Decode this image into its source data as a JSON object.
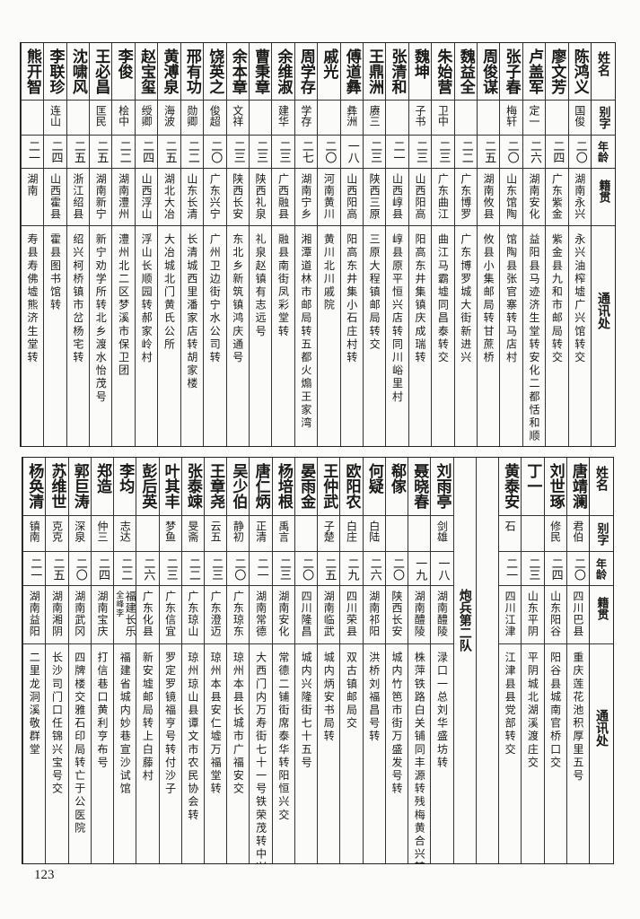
{
  "headers": {
    "name": "姓名",
    "alias": "别字",
    "age": "年龄",
    "origin": "籍贯",
    "address": "通讯处"
  },
  "top_table": {
    "rows": [
      {
        "name": "陈鸿义",
        "alias": "国俊",
        "age": "二〇",
        "origin": "湖南永兴",
        "address": "永兴油榨墟广兴馆转交"
      },
      {
        "name": "廖文芳",
        "alias": "",
        "age": "二四",
        "origin": "广东紫金",
        "address": "紫金县九和市邮局转交"
      },
      {
        "name": "卢盖军",
        "alias": "定一",
        "age": "二六",
        "origin": "湖南安化",
        "address": "益阳县马迹济生堂转安化二都恬和顺"
      },
      {
        "name": "张子春",
        "alias": "梅轩",
        "age": "二〇",
        "origin": "山东馆陶",
        "address": "馆陶县张官寨转马店村"
      },
      {
        "name": "周俊谋",
        "alias": "",
        "age": "二五",
        "origin": "湖南攸县",
        "address": "攸县小集邮局转甘蔗桥"
      },
      {
        "name": "魏益全",
        "alias": "",
        "age": "二二",
        "origin": "广东博罗",
        "address": "广东博罗城大街新进兴"
      },
      {
        "name": "朱始营",
        "alias": "卫中",
        "age": "二三",
        "origin": "广东曲江",
        "address": "曲江马霸墟同昌泰转交"
      },
      {
        "name": "魏坤",
        "alias": "子书",
        "age": "二三",
        "origin": "山西阳高",
        "address": "阳高东井集镇庆成瑞转"
      },
      {
        "name": "张清和",
        "alias": "",
        "age": "二一",
        "origin": "山西崞县",
        "address": "崞县原平恒兴店转同川峪里村"
      },
      {
        "name": "王鼎洲",
        "alias": "赓三",
        "age": "二三",
        "origin": "陕西三原",
        "address": "三原大程镇邮局转交"
      },
      {
        "name": "傅道彝",
        "alias": "彝洲",
        "age": "一八",
        "origin": "山西阳高",
        "address": "阳高东井集小石庄村转"
      },
      {
        "name": "戚光",
        "alias": "",
        "age": "二〇",
        "origin": "河南黄川",
        "address": "黄川北川戚院"
      },
      {
        "name": "周学存",
        "alias": "学存",
        "age": "二七",
        "origin": "湖南宁乡",
        "address": "湘潭道林市邮局转五都火煽王家湾"
      },
      {
        "name": "余维淑",
        "alias": "建华",
        "age": "二三",
        "origin": "广西融县",
        "address": "融县南街凤彩堂转"
      },
      {
        "name": "曹秉章",
        "alias": "",
        "age": "二三",
        "origin": "陕西礼泉",
        "address": "礼泉赵镇有志远号"
      },
      {
        "name": "余本章",
        "alias": "文祥",
        "age": "二三",
        "origin": "陕西长安",
        "address": "东北乡新筑镇鸿庆通号"
      },
      {
        "name": "饶英之",
        "alias": "俊超",
        "age": "二〇",
        "origin": "广东兴宁",
        "address": "广州卫边街宁水公司转"
      },
      {
        "name": "邢有功",
        "alias": "勋卿",
        "age": "二二",
        "origin": "山东长清",
        "address": "长清城西里潘家店转胡家楼"
      },
      {
        "name": "黄溥泉",
        "alias": "海波",
        "age": "二五",
        "origin": "湖北大冶",
        "address": "大冶城北门黄氏公所"
      },
      {
        "name": "赵宝玺",
        "alias": "绶卿",
        "age": "二四",
        "origin": "山西浮山",
        "address": "浮山长顺园转郝家岭村"
      },
      {
        "name": "李俊",
        "alias": "桧中",
        "age": "二二",
        "origin": "湖南澧州",
        "address": "澧州北二区梦溪市保卫团"
      },
      {
        "name": "王必昌",
        "alias": "匡民",
        "age": "二五",
        "origin": "湖南新宁",
        "address": "新宁劝学所转北乡渡水怡茂号"
      },
      {
        "name": "沈啸风",
        "alias": "",
        "age": "二五",
        "origin": "浙江绍县",
        "address": "绍兴柯桥镇市岔杨宅转"
      },
      {
        "name": "李联珍",
        "alias": "连山",
        "age": "二四",
        "origin": "山西霍县",
        "address": "霍县图书馆转"
      },
      {
        "name": "熊开智",
        "alias": "",
        "age": "二一",
        "origin": "湖南",
        "address": "寿县寿佛墟熊济生堂转"
      }
    ]
  },
  "bottom_table": {
    "rows_right": [
      {
        "name": "唐靖澜",
        "alias": "君伯",
        "age": "二〇",
        "origin": "四川巴县",
        "address": "重庆莲花池积厚里五号"
      },
      {
        "name": "刘世琢",
        "alias": "修民",
        "age": "二四",
        "origin": "山东阳谷",
        "address": "阳谷县城南官桥口交"
      },
      {
        "name": "丁一",
        "alias": "",
        "age": "二三",
        "origin": "山东平阴",
        "address": "平阴城北湖溪渡庄交"
      },
      {
        "name": "黄泰安",
        "alias": "石",
        "age": "二一",
        "origin": "四川江津",
        "address": "江津县县党部转交"
      }
    ],
    "section_title": "炮兵第二队",
    "rows_left": [
      {
        "name": "刘雨亭",
        "alias": "剑雄",
        "age": "一八",
        "origin": "湖南醴陵",
        "address": "渌口一总刘华盛坊转"
      },
      {
        "name": "聂晓春",
        "alias": "",
        "age": "一九",
        "origin": "湖南醴陵",
        "address": "株萍铁路白关铺同丰源转残梅黄合兴转"
      },
      {
        "name": "郗傢",
        "alias": "",
        "age": "二〇",
        "origin": "陕西长安",
        "address": "城内竹笆市街万盛发号转"
      },
      {
        "name": "何疑",
        "alias": "白陆",
        "age": "二六",
        "origin": "湖南祁阳",
        "address": "洪桥刘福昌号转"
      },
      {
        "name": "欧阳农",
        "alias": "白庄",
        "age": "二九",
        "origin": "四川荣县",
        "address": "双古镇邮局交"
      },
      {
        "name": "王仲武",
        "alias": "子楚",
        "age": "二五",
        "origin": "湖南临武",
        "address": "城内炳安书局转"
      },
      {
        "name": "晏雨金",
        "alias": "",
        "age": "二〇",
        "origin": "四川隆昌",
        "address": "城内兴隆街七十五号"
      },
      {
        "name": "杨培根",
        "alias": "禹言",
        "age": "二三",
        "origin": "湖南安化",
        "address": "常德二铺街席泰华转阳恒兴交"
      },
      {
        "name": "唐仁炳",
        "alias": "正清",
        "age": "二一",
        "origin": "湖南常德",
        "address": "大西门内万寿街七十一号铁荣茂转中兴桥交"
      },
      {
        "name": "吴少伯",
        "alias": "静初",
        "age": "二〇",
        "origin": "广东琼东",
        "address": "琼州本县长城市广福安交"
      },
      {
        "name": "王章尧",
        "alias": "云五",
        "age": "二三",
        "origin": "广东澄迈",
        "address": "琼州本县安仁墟万福堂转"
      },
      {
        "name": "张泰竦",
        "alias": "旻斋",
        "age": "二二",
        "origin": "广东琼山",
        "address": "琼州琼山县谭文市农民协会转"
      },
      {
        "name": "叶其丰",
        "alias": "梦鱼",
        "age": "二三",
        "origin": "广东信宜",
        "address": "罗定罗镜福亨号转付沙子"
      },
      {
        "name": "彭后英",
        "alias": "",
        "age": "二六",
        "origin": "广东化县",
        "address": "新安墟邮局转上白藤村"
      },
      {
        "name": "李均",
        "alias": "志达",
        "age": "二二",
        "origin": "福建长乐",
        "origin_note": "全峰李",
        "address": "福建省城内妙巷宣沙试馆"
      },
      {
        "name": "郑造",
        "alias": "仲三",
        "age": "二四",
        "origin": "湖南宝庆",
        "address": "打信巷口黄利亨布号"
      },
      {
        "name": "郭巨涛",
        "alias": "深泉",
        "age": "二〇",
        "origin": "湖南武冈",
        "address": "四牌楼交雅石印局转亡于公医院"
      },
      {
        "name": "苏维世",
        "alias": "克克",
        "age": "二五",
        "origin": "湖南湘阴",
        "address": "长沙司门口任锦兴宝号交"
      },
      {
        "name": "杨奂清",
        "alias": "镇南",
        "age": "二一",
        "origin": "湖南益阳",
        "address": "二里龙洞溪敬群堂"
      }
    ]
  },
  "page_number": "123"
}
